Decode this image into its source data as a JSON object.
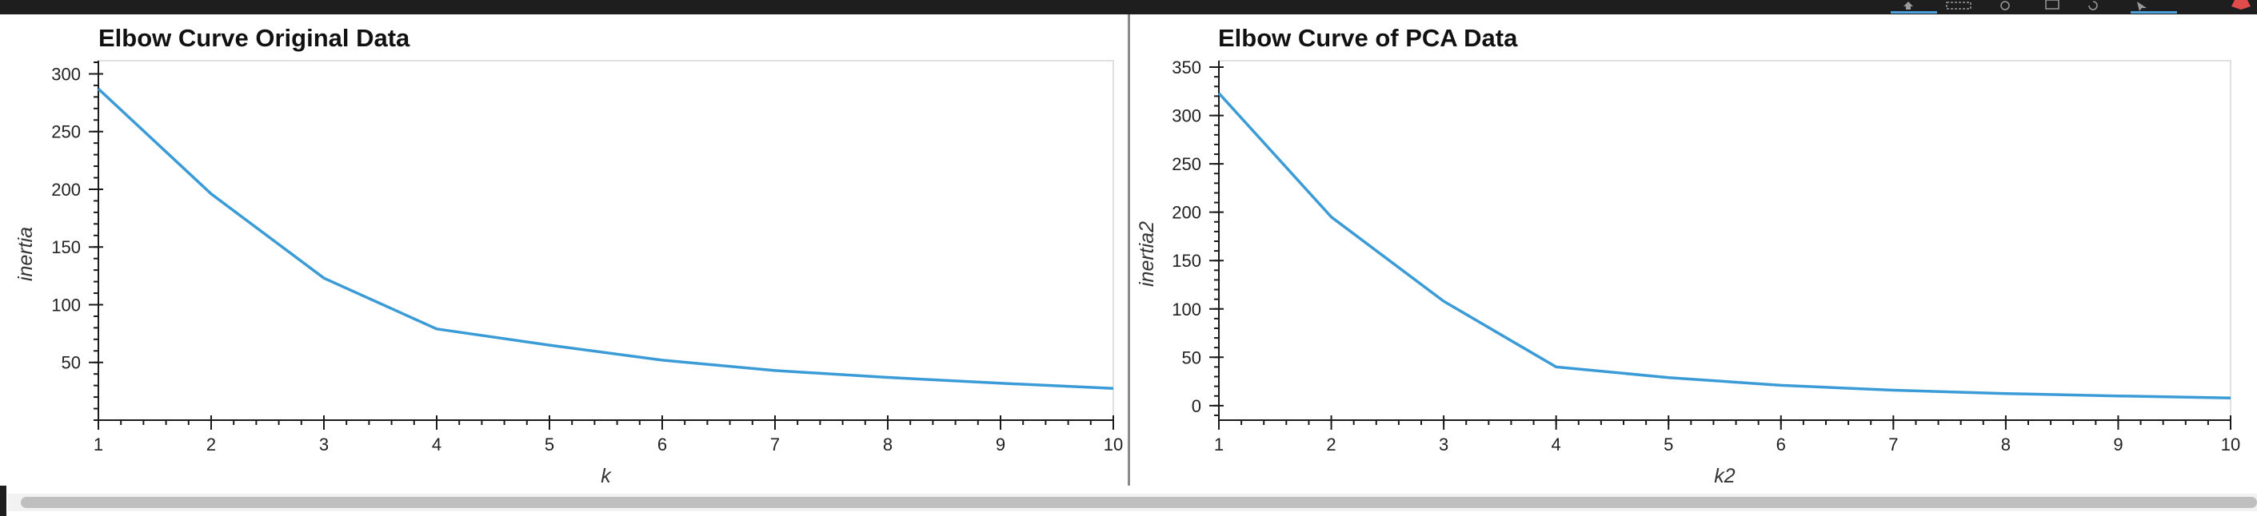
{
  "colors": {
    "line": "#3a9bd6",
    "axis": "#1a1a1a",
    "frame": "#e0e0e0",
    "toolbar_accent": "#4aa3df",
    "toolbar_red": "#e24b4b"
  },
  "toolbar": {
    "icons": [
      "pan-icon",
      "box-zoom-icon",
      "wheel-zoom-icon",
      "save-icon",
      "reset-icon",
      "hover-icon",
      "bokeh-logo-icon"
    ]
  },
  "chart_data": [
    {
      "type": "line",
      "title": "Elbow Curve Original Data",
      "xlabel": "k",
      "ylabel": "inertia",
      "x": [
        1,
        2,
        3,
        4,
        5,
        6,
        7,
        8,
        9,
        10
      ],
      "series": [
        {
          "values": [
            287,
            196,
            123,
            79,
            65,
            52,
            43,
            37,
            32,
            27.5
          ]
        }
      ],
      "xlim": [
        1,
        10
      ],
      "ylim": [
        0,
        310
      ],
      "xticks": [
        "1",
        "2",
        "3",
        "4",
        "5",
        "6",
        "7",
        "8",
        "9",
        "10"
      ],
      "yticks": [
        50,
        100,
        150,
        200,
        250,
        300
      ],
      "ytick_labels": [
        "50",
        "100",
        "150",
        "200",
        "250",
        "300"
      ],
      "grid": false
    },
    {
      "type": "line",
      "title": "Elbow Curve of PCA Data",
      "xlabel": "k2",
      "ylabel": "inertia2",
      "x": [
        1,
        2,
        3,
        4,
        5,
        6,
        7,
        8,
        9,
        10
      ],
      "series": [
        {
          "values": [
            323,
            195,
            108,
            40,
            29,
            21,
            16,
            12.5,
            10,
            8
          ]
        }
      ],
      "xlim": [
        1,
        10
      ],
      "ylim": [
        -15,
        355
      ],
      "xticks": [
        "1",
        "2",
        "3",
        "4",
        "5",
        "6",
        "7",
        "8",
        "9",
        "10"
      ],
      "yticks": [
        0,
        50,
        100,
        150,
        200,
        250,
        300,
        350
      ],
      "ytick_labels": [
        "0",
        "50",
        "100",
        "150",
        "200",
        "250",
        "300",
        "350"
      ],
      "grid": false
    }
  ]
}
